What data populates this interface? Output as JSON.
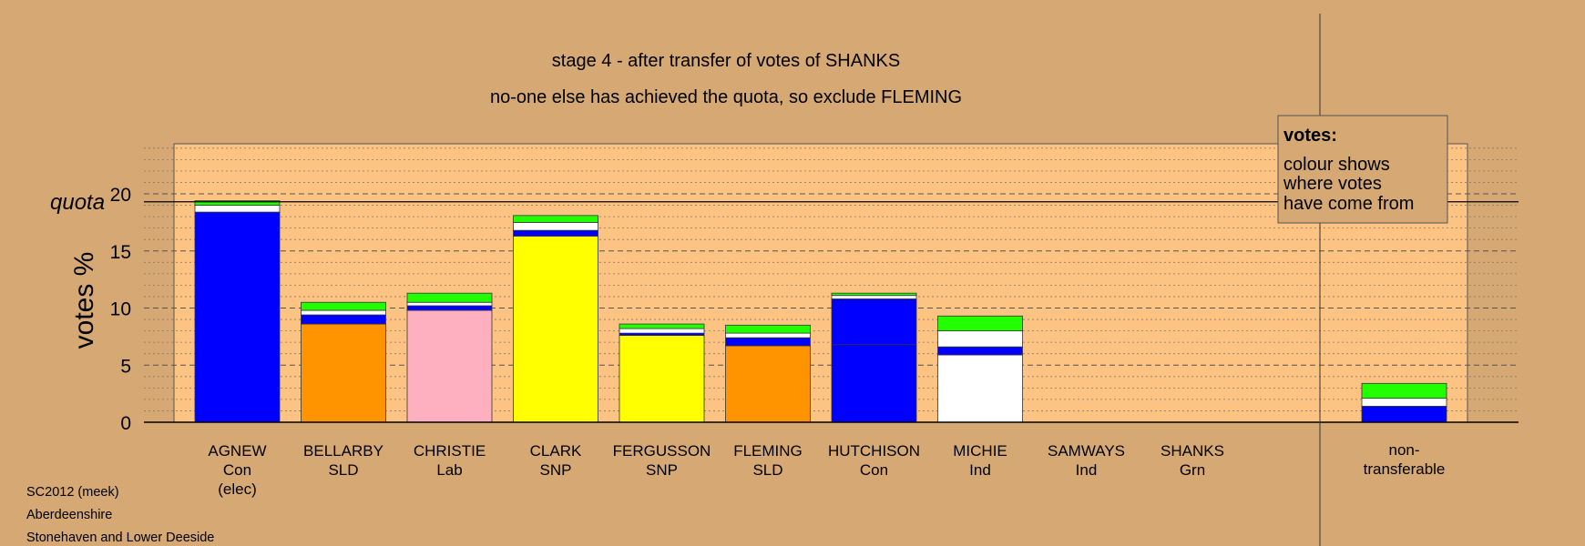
{
  "chart_data": {
    "type": "bar",
    "stacked": true,
    "title": "stage 4 - after transfer of votes of SHANKS",
    "subtitle": "no-one else has achieved the quota, so exclude FLEMING",
    "ylabel": "votes %",
    "ylim": [
      0,
      24
    ],
    "yticks": [
      0,
      5,
      10,
      15,
      20
    ],
    "quota": {
      "label": "quota",
      "value": 19.3
    },
    "grid": true,
    "legend": {
      "title": "votes:",
      "lines": [
        "colour shows",
        "where votes",
        "have come from"
      ],
      "placement": "top-right"
    },
    "categories": [
      {
        "name": "AGNEW",
        "party": "Con",
        "note": "(elec)"
      },
      {
        "name": "BELLARBY",
        "party": "SLD",
        "note": ""
      },
      {
        "name": "CHRISTIE",
        "party": "Lab",
        "note": ""
      },
      {
        "name": "CLARK",
        "party": "SNP",
        "note": ""
      },
      {
        "name": "FERGUSSON",
        "party": "SNP",
        "note": ""
      },
      {
        "name": "FLEMING",
        "party": "SLD",
        "note": ""
      },
      {
        "name": "HUTCHISON",
        "party": "Con",
        "note": ""
      },
      {
        "name": "MICHIE",
        "party": "Ind",
        "note": ""
      },
      {
        "name": "SAMWAYS",
        "party": "Ind",
        "note": ""
      },
      {
        "name": "SHANKS",
        "party": "Grn",
        "note": ""
      }
    ],
    "nontransferable": {
      "label": [
        "non-",
        "transferable"
      ]
    },
    "colors": {
      "Con": "#0000ff",
      "SLD": "#ff9400",
      "Lab": "#ffb0c0",
      "SNP": "#ffff00",
      "Ind": "#ffffff",
      "Grn": "#22ff00"
    },
    "stacks": [
      [
        {
          "from": "Con",
          "value": 18.4
        },
        {
          "from": "Ind",
          "value": 0.6
        },
        {
          "from": "Grn",
          "value": 0.4
        }
      ],
      [
        {
          "from": "SLD",
          "value": 8.6
        },
        {
          "from": "Con",
          "value": 0.8
        },
        {
          "from": "Ind",
          "value": 0.4
        },
        {
          "from": "Grn",
          "value": 0.7
        }
      ],
      [
        {
          "from": "Lab",
          "value": 9.8
        },
        {
          "from": "Con",
          "value": 0.4
        },
        {
          "from": "Ind",
          "value": 0.3
        },
        {
          "from": "Grn",
          "value": 0.8
        }
      ],
      [
        {
          "from": "SNP",
          "value": 16.3
        },
        {
          "from": "Con",
          "value": 0.5
        },
        {
          "from": "Ind",
          "value": 0.7
        },
        {
          "from": "Grn",
          "value": 0.6
        }
      ],
      [
        {
          "from": "SNP",
          "value": 7.6
        },
        {
          "from": "Con",
          "value": 0.2
        },
        {
          "from": "Ind",
          "value": 0.4
        },
        {
          "from": "Grn",
          "value": 0.4
        }
      ],
      [
        {
          "from": "SLD",
          "value": 6.7
        },
        {
          "from": "Con",
          "value": 0.7
        },
        {
          "from": "Ind",
          "value": 0.4
        },
        {
          "from": "Grn",
          "value": 0.7
        }
      ],
      [
        {
          "from": "Con",
          "value": 6.8
        },
        {
          "from": "Con",
          "value": 4.0
        },
        {
          "from": "Ind",
          "value": 0.3
        },
        {
          "from": "Grn",
          "value": 0.2
        }
      ],
      [
        {
          "from": "Ind",
          "value": 5.9
        },
        {
          "from": "Con",
          "value": 0.7
        },
        {
          "from": "Ind",
          "value": 1.4
        },
        {
          "from": "Grn",
          "value": 1.3
        }
      ],
      [],
      [],
      [
        {
          "from": "Con",
          "value": 1.4
        },
        {
          "from": "Ind",
          "value": 0.7
        },
        {
          "from": "Grn",
          "value": 1.3
        }
      ]
    ]
  },
  "footer": {
    "line1": "SC2012 (meek)",
    "line2": "Aberdeenshire",
    "line3": "Stonehaven and Lower Deeside"
  }
}
